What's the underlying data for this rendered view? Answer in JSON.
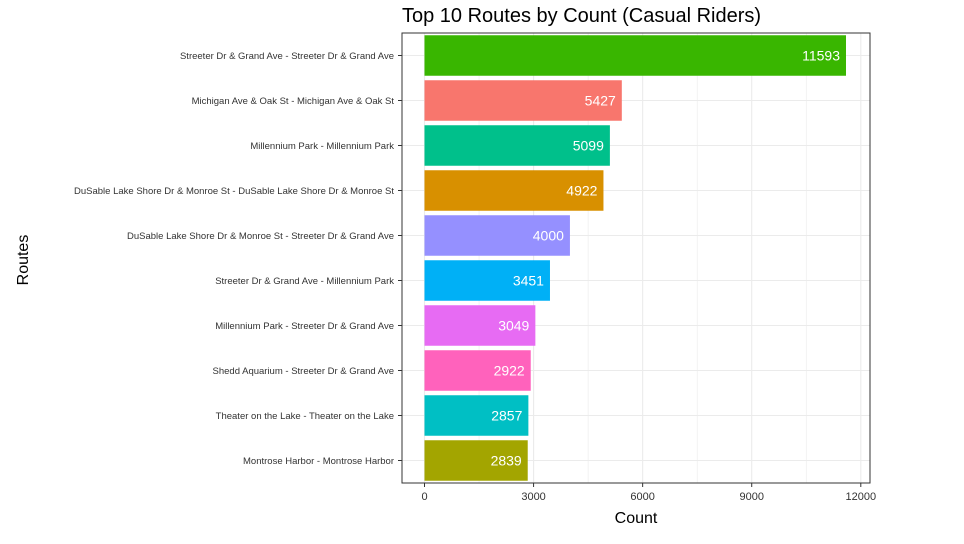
{
  "chart_data": {
    "type": "bar",
    "orientation": "horizontal",
    "title": "Top 10 Routes by Count (Casual Riders)",
    "xlabel": "Count",
    "ylabel": "Routes",
    "xlim": [
      0,
      12000
    ],
    "xticks": [
      0,
      3000,
      6000,
      9000,
      12000
    ],
    "grid": true,
    "legend": "none",
    "categories": [
      "Streeter Dr & Grand Ave  -  Streeter Dr & Grand Ave",
      "Michigan Ave & Oak St  -  Michigan Ave & Oak St",
      "Millennium Park  -  Millennium Park",
      "DuSable Lake Shore Dr & Monroe St  -  DuSable Lake Shore Dr & Monroe St",
      "DuSable Lake Shore Dr & Monroe St  -  Streeter Dr & Grand Ave",
      "Streeter Dr & Grand Ave  -  Millennium Park",
      "Millennium Park  -  Streeter Dr & Grand Ave",
      "Shedd Aquarium  -  Streeter Dr & Grand Ave",
      "Theater on the Lake  -  Theater on the Lake",
      "Montrose Harbor  -  Montrose Harbor"
    ],
    "values": [
      11593,
      5427,
      5099,
      4922,
      4000,
      3451,
      3049,
      2922,
      2857,
      2839
    ],
    "colors": [
      "#39B600",
      "#F8766D",
      "#00C08B",
      "#D89000",
      "#9590FF",
      "#00B0F6",
      "#E76BF3",
      "#FF62BC",
      "#00BFC4",
      "#A3A500"
    ]
  }
}
